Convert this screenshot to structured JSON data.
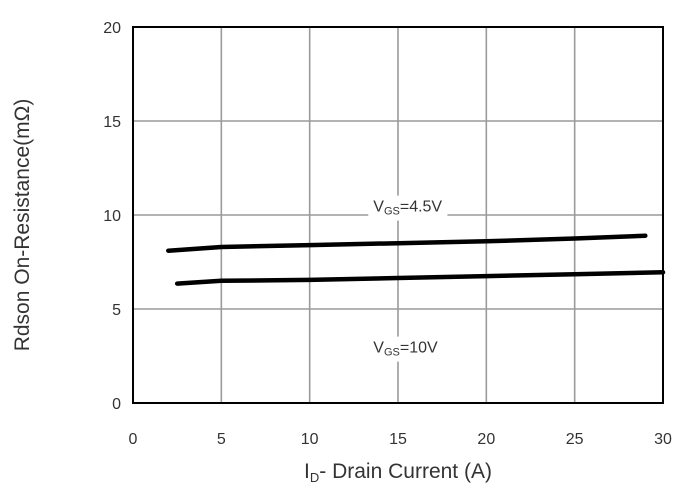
{
  "chart_data": {
    "type": "line",
    "title": "",
    "xlabel_main": "I",
    "xlabel_sub": "D",
    "xlabel_rest": "- Drain Current (A)",
    "ylabel": "Rdson On-Resistance(mΩ)",
    "xlim": [
      0,
      30
    ],
    "ylim": [
      0,
      20
    ],
    "x_ticks": [
      "0",
      "5",
      "10",
      "15",
      "20",
      "25",
      "30"
    ],
    "y_ticks": [
      "0",
      "5",
      "10",
      "15",
      "20"
    ],
    "grid": true,
    "series": [
      {
        "annotation_main": "V",
        "annotation_sub": "GS",
        "annotation_rest": "=4.5V",
        "x": [
          2,
          5,
          10,
          15,
          20,
          25,
          29
        ],
        "y": [
          8.1,
          8.3,
          8.4,
          8.5,
          8.6,
          8.75,
          8.9
        ]
      },
      {
        "annotation_main": "V",
        "annotation_sub": "GS",
        "annotation_rest": "=10V",
        "x": [
          2.5,
          5,
          10,
          15,
          20,
          25,
          30
        ],
        "y": [
          6.35,
          6.5,
          6.55,
          6.65,
          6.75,
          6.85,
          6.95
        ]
      }
    ]
  }
}
